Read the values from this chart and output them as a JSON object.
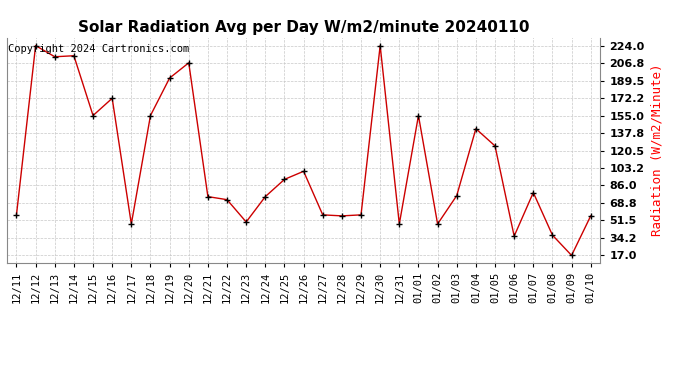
{
  "title": "Solar Radiation Avg per Day W/m2/minute 20240110",
  "copyright": "Copyright 2024 Cartronics.com",
  "ylabel": "Radiation (W/m2/Minute)",
  "labels": [
    "12/11",
    "12/12",
    "12/13",
    "12/14",
    "12/15",
    "12/16",
    "12/17",
    "12/18",
    "12/19",
    "12/20",
    "12/21",
    "12/22",
    "12/23",
    "12/24",
    "12/25",
    "12/26",
    "12/27",
    "12/28",
    "12/29",
    "12/30",
    "12/31",
    "01/01",
    "01/02",
    "01/03",
    "01/04",
    "01/05",
    "01/06",
    "01/07",
    "01/08",
    "01/09",
    "01/10"
  ],
  "values": [
    57,
    224,
    213,
    214,
    155,
    172,
    48,
    155,
    192,
    207,
    75,
    72,
    50,
    75,
    92,
    100,
    57,
    56,
    57,
    224,
    48,
    155,
    48,
    76,
    142,
    125,
    36,
    79,
    37,
    17,
    56
  ],
  "line_color": "#cc0000",
  "marker_color": "#000000",
  "bg_color": "#ffffff",
  "grid_color": "#c8c8c8",
  "yticks": [
    17.0,
    34.2,
    51.5,
    68.8,
    86.0,
    103.2,
    120.5,
    137.8,
    155.0,
    172.2,
    189.5,
    206.8,
    224.0
  ],
  "ylim": [
    10,
    232
  ],
  "title_fontsize": 11,
  "ylabel_fontsize": 9,
  "copyright_fontsize": 7.5,
  "tick_fontsize": 7.5,
  "ytick_fontsize": 8
}
